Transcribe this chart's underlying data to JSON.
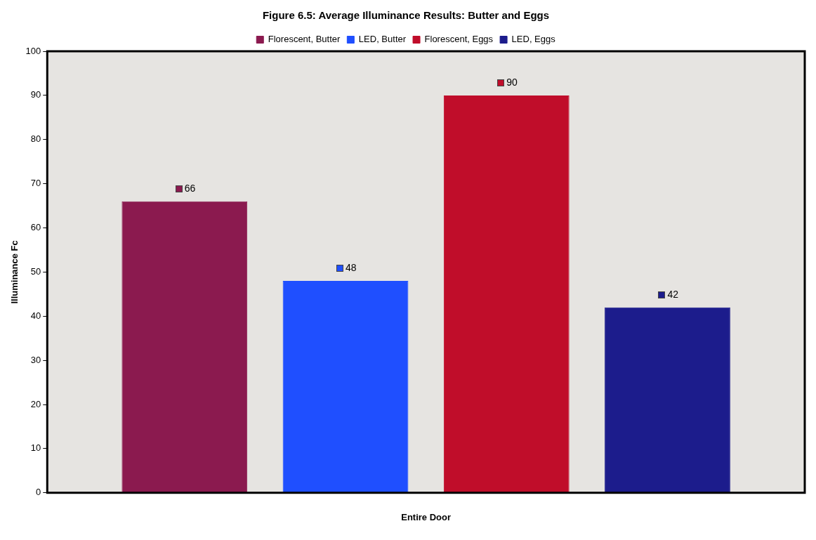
{
  "chart_data": {
    "type": "bar",
    "title": "Figure 6.5: Average Illuminance Results: Butter and Eggs",
    "ylabel": "Illuminance Fc",
    "xlabel": "Entire Door",
    "categories": [
      null
    ],
    "series": [
      {
        "name": "Florescent, Butter",
        "color": "#8b1a4f",
        "values": [
          66
        ]
      },
      {
        "name": "LED, Butter",
        "color": "#1f4fff",
        "values": [
          48
        ]
      },
      {
        "name": "Florescent, Eggs",
        "color": "#c00d2a",
        "values": [
          90
        ]
      },
      {
        "name": "LED, Eggs",
        "color": "#1c1c8c",
        "values": [
          42
        ]
      }
    ],
    "ylim": [
      0,
      100
    ],
    "yticks": [
      0,
      10,
      20,
      30,
      40,
      50,
      60,
      70,
      80,
      90,
      100
    ],
    "grid": false,
    "legend": "top",
    "data_labels": true
  }
}
